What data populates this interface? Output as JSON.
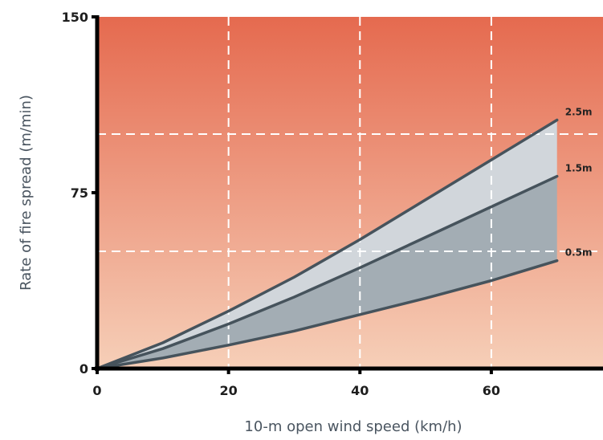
{
  "chart_data": {
    "type": "line",
    "title": "",
    "xlabel": "10-m open wind speed (km/h)",
    "ylabel": "Rate of fire spread (m/min)",
    "xlim": [
      0,
      77
    ],
    "ylim": [
      0,
      150
    ],
    "x_ticks": [
      "0",
      "20",
      "40",
      "60"
    ],
    "y_ticks": [
      "0",
      "75",
      "150"
    ],
    "grid": true,
    "legend": "inline labels at line ends",
    "colors": {
      "background_top": "#e56a4f",
      "background_bottom": "#f6cfb8",
      "line": "#46535c",
      "band_upper": "#d1d6db",
      "band_lower": "#a3adb4",
      "grid": "#ffffff"
    },
    "series": [
      {
        "name": "2.5m",
        "x": [
          0,
          10,
          20,
          30,
          40,
          50,
          60,
          70
        ],
        "y": [
          0,
          11,
          24.5,
          39,
          55,
          72,
          89,
          106
        ]
      },
      {
        "name": "1.5m",
        "x": [
          0,
          10,
          20,
          30,
          40,
          50,
          60,
          70
        ],
        "y": [
          0,
          8.5,
          19,
          30.5,
          43,
          56,
          69,
          82
        ]
      },
      {
        "name": "0.5m",
        "x": [
          0,
          10,
          20,
          30,
          40,
          50,
          60,
          70
        ],
        "y": [
          0,
          4.5,
          10,
          16,
          23,
          30,
          37.5,
          46
        ]
      }
    ]
  }
}
